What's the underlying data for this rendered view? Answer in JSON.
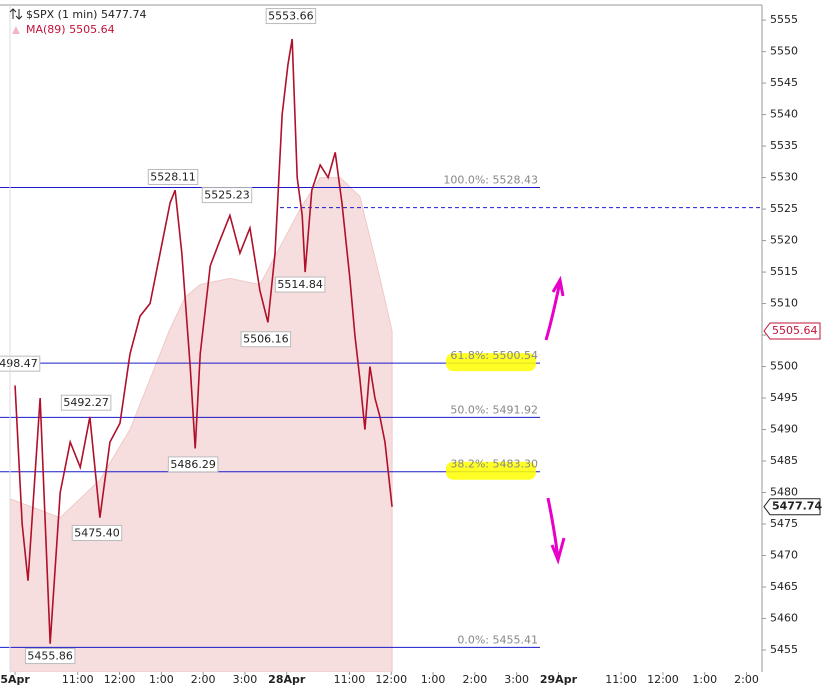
{
  "chart_data": {
    "type": "line",
    "series": [
      {
        "name": "$SPX (1 min)",
        "color": "#b0102a",
        "last_label": "5477.74",
        "x": [
          0,
          0.17,
          0.31,
          0.6,
          0.84,
          1.08,
          1.32,
          1.56,
          1.79,
          2.03,
          2.27,
          2.51,
          2.75,
          2.99,
          3.23,
          3.47,
          3.71,
          3.83,
          3.99,
          4.19,
          4.31,
          4.43,
          4.67,
          4.9,
          5.14,
          5.38,
          5.62,
          5.86,
          6.05,
          6.22,
          6.39,
          6.53,
          6.63,
          6.75,
          6.87,
          6.94,
          7.1,
          7.3,
          7.49,
          7.66,
          7.82,
          8.01,
          8.13,
          8.25,
          8.37,
          8.49,
          8.61,
          8.73,
          8.85,
          9.02
        ],
        "values": [
          5497,
          5475,
          5466,
          5495,
          5456,
          5480,
          5488,
          5484,
          5492,
          5476,
          5488,
          5491,
          5502,
          5508,
          5510,
          5518,
          5526,
          5528,
          5518,
          5500,
          5487,
          5502,
          5516,
          5520,
          5524,
          5518,
          5522,
          5512,
          5507,
          5518,
          5540,
          5548,
          5552,
          5530,
          5524,
          5515,
          5528,
          5532,
          5530,
          5534,
          5526,
          5514,
          5505,
          5498,
          5490,
          5500,
          5495,
          5492,
          5488,
          5477.74
        ]
      },
      {
        "name": "MA(89)",
        "color": "#f7dede",
        "area": true,
        "last_label": "5505.64",
        "x": [
          -0.12,
          1.08,
          2.03,
          2.75,
          3.23,
          3.71,
          4.07,
          4.43,
          5.14,
          5.86,
          6.34,
          6.82,
          7.3,
          7.78,
          8.25,
          8.73,
          9.02
        ],
        "values": [
          5479,
          5476,
          5482,
          5490,
          5498,
          5506,
          5511,
          5513,
          5514,
          5513,
          5519,
          5525,
          5530,
          5530,
          5527,
          5514,
          5505.64
        ]
      }
    ],
    "xlim": [
      -0.36,
      17.87
    ],
    "xticks": [
      {
        "value": 0,
        "label": "5Apr"
      },
      {
        "value": 1.5,
        "label": "11:00"
      },
      {
        "value": 2.5,
        "label": "12:00"
      },
      {
        "value": 3.5,
        "label": "1:00"
      },
      {
        "value": 4.5,
        "label": "2:00"
      },
      {
        "value": 5.5,
        "label": "3:00"
      },
      {
        "value": 6.5,
        "label": "28Apr"
      },
      {
        "value": 8,
        "label": "11:00"
      },
      {
        "value": 9,
        "label": "12:00"
      },
      {
        "value": 10,
        "label": "1:00"
      },
      {
        "value": 11,
        "label": "2:00"
      },
      {
        "value": 12,
        "label": "3:00"
      },
      {
        "value": 13,
        "label": "29Apr"
      },
      {
        "value": 14.5,
        "label": "11:00"
      },
      {
        "value": 15.5,
        "label": "12:00"
      },
      {
        "value": 16.5,
        "label": "1:00"
      },
      {
        "value": 17.5,
        "label": "2:00"
      }
    ],
    "ylim": [
      5451.5,
      5557.4
    ],
    "yticks": [
      5455,
      5460,
      5465,
      5470,
      5475,
      5480,
      5485,
      5490,
      5495,
      5500,
      5505,
      5510,
      5515,
      5520,
      5525,
      5530,
      5535,
      5540,
      5545,
      5550,
      5555
    ],
    "fib_levels": [
      {
        "value": 5528.43,
        "label": "100.0%: 5528.43",
        "highlighted": false
      },
      {
        "value": 5500.54,
        "label": "61.8%: 5500.54",
        "highlighted": true
      },
      {
        "value": 5491.92,
        "label": "50.0%: 5491.92",
        "highlighted": false
      },
      {
        "value": 5483.3,
        "label": "38.2%: 5483.30",
        "highlighted": true
      },
      {
        "value": 5455.41,
        "label": "0.0%: 5455.41",
        "highlighted": false
      }
    ],
    "reference_lines": [
      {
        "value": 5525.23,
        "style": "dashed"
      }
    ],
    "annotations": [
      {
        "x": 6.6,
        "value": 5553.66,
        "label": "5553.66"
      },
      {
        "x": 3.78,
        "value": 5528.11,
        "label": "5528.11"
      },
      {
        "x": 5.07,
        "value": 5525.23,
        "label": "5525.23"
      },
      {
        "x": 6.82,
        "value": 5514.84,
        "label": "5514.84"
      },
      {
        "x": 6.0,
        "value": 5506.16,
        "label": "5506.16"
      },
      {
        "x": 0,
        "value": 5498.47,
        "label": "5498.47"
      },
      {
        "x": 1.7,
        "value": 5492.27,
        "label": "5492.27"
      },
      {
        "x": 4.26,
        "value": 5486.29,
        "label": "5486.29"
      },
      {
        "x": 1.96,
        "value": 5475.4,
        "label": "5475.40"
      },
      {
        "x": 0.84,
        "value": 5455.86,
        "label": "5455.86"
      }
    ]
  }
}
